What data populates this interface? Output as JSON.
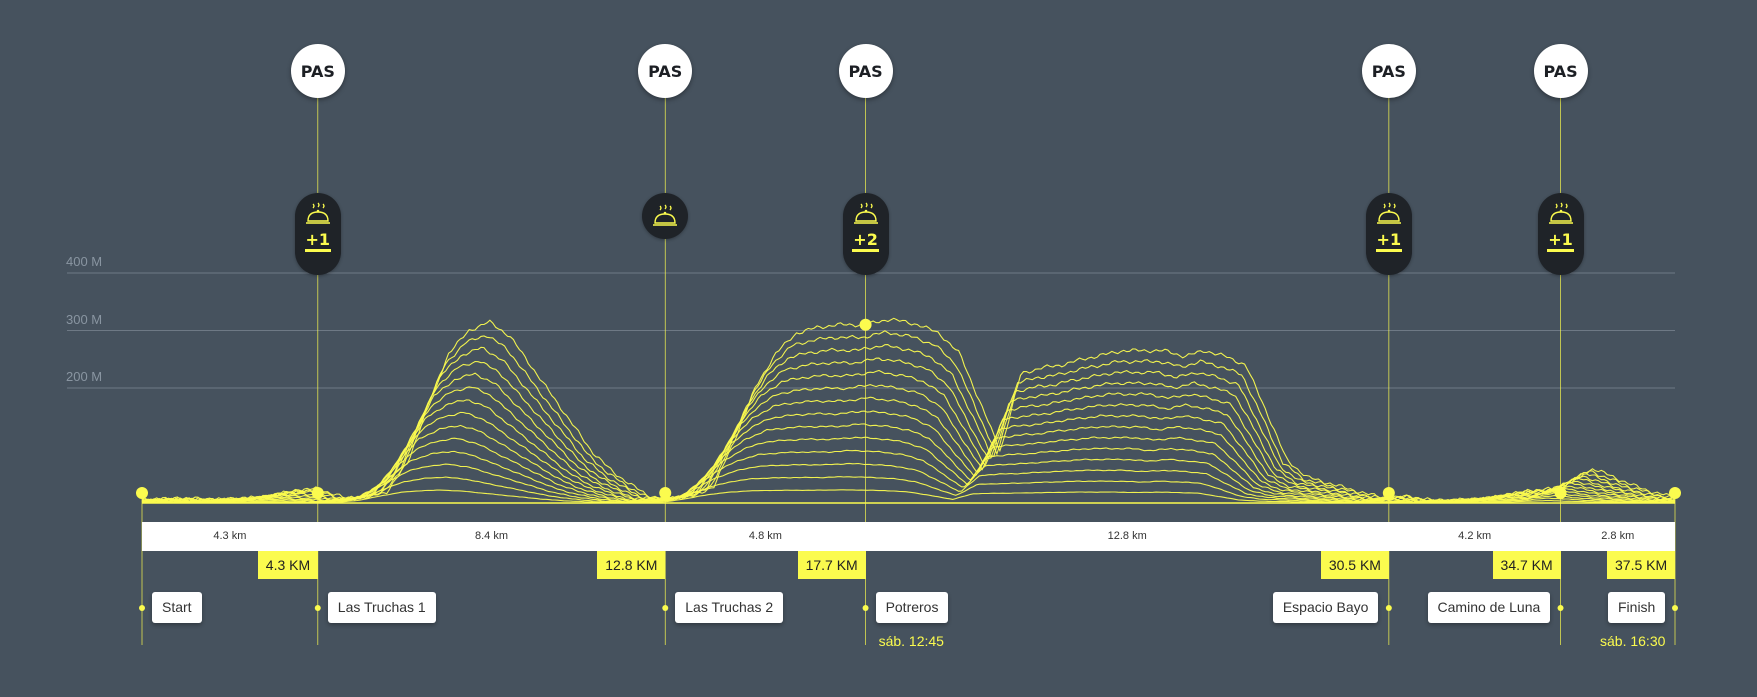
{
  "chart_data": {
    "type": "area",
    "title": "",
    "xlabel": "",
    "ylabel": "",
    "x_unit": "km",
    "xlim": [
      0,
      37.5
    ],
    "ylim": [
      0,
      420
    ],
    "y_ticks": [
      {
        "value": 200,
        "label": "200 M"
      },
      {
        "value": 300,
        "label": "300 M"
      },
      {
        "value": 400,
        "label": "400 M"
      }
    ],
    "grid": true,
    "legend": "none",
    "elevation_profile": {
      "x": [
        0,
        1,
        2,
        3,
        3.8,
        4.3,
        5,
        5.5,
        6,
        6.5,
        7,
        7.5,
        8,
        8.5,
        9,
        9.5,
        10,
        10.5,
        11,
        11.5,
        12,
        12.4,
        12.8,
        13.2,
        13.6,
        14,
        14.5,
        15,
        15.5,
        16,
        16.5,
        17,
        17.7,
        18.3,
        19,
        19.5,
        20,
        20.5,
        21,
        21.5,
        22,
        22.5,
        23,
        24,
        25,
        25.5,
        26,
        26.5,
        27,
        27.5,
        28,
        28.5,
        29,
        29.5,
        30,
        30.5,
        31,
        31.5,
        32,
        33,
        33.5,
        34,
        34.7,
        35,
        35.5,
        36,
        36.5,
        37,
        37.5
      ],
      "y": [
        5,
        8,
        6,
        10,
        22,
        25,
        8,
        10,
        20,
        70,
        170,
        260,
        300,
        315,
        290,
        240,
        190,
        140,
        90,
        55,
        30,
        12,
        8,
        10,
        15,
        30,
        110,
        200,
        260,
        295,
        305,
        310,
        310,
        320,
        310,
        295,
        260,
        175,
        90,
        225,
        235,
        240,
        250,
        265,
        265,
        255,
        265,
        255,
        240,
        160,
        75,
        45,
        35,
        25,
        15,
        8,
        12,
        5,
        4,
        8,
        15,
        22,
        25,
        40,
        60,
        45,
        30,
        18,
        10
      ]
    },
    "layer_count": 14,
    "aid_stations": [
      {
        "km": 4.3,
        "badge": "PAS",
        "food": "+1"
      },
      {
        "km": 12.8,
        "badge": "PAS",
        "food": ""
      },
      {
        "km": 17.7,
        "badge": "PAS",
        "food": "+2"
      },
      {
        "km": 30.5,
        "badge": "PAS",
        "food": "+1"
      },
      {
        "km": 34.7,
        "badge": "PAS",
        "food": "+1"
      }
    ],
    "segments": [
      {
        "from_km": 0,
        "to_km": 4.3,
        "label": "4.3 km"
      },
      {
        "from_km": 4.3,
        "to_km": 12.8,
        "label": "8.4 km"
      },
      {
        "from_km": 12.8,
        "to_km": 17.7,
        "label": "4.8 km"
      },
      {
        "from_km": 17.7,
        "to_km": 30.5,
        "label": "12.8 km"
      },
      {
        "from_km": 30.5,
        "to_km": 34.7,
        "label": "4.2 km"
      },
      {
        "from_km": 34.7,
        "to_km": 37.5,
        "label": "2.8 km"
      }
    ],
    "checkpoints": [
      {
        "km": 0,
        "name": "Start",
        "km_label": "",
        "time": ""
      },
      {
        "km": 4.3,
        "name": "Las Truchas 1",
        "km_label": "4.3 KM",
        "time": ""
      },
      {
        "km": 12.8,
        "name": "Las Truchas 2",
        "km_label": "12.8 KM",
        "time": ""
      },
      {
        "km": 17.7,
        "name": "Potreros",
        "km_label": "17.7 KM",
        "time": "sáb. 12:45"
      },
      {
        "km": 30.5,
        "name": "Espacio Bayo",
        "km_label": "30.5 KM",
        "time": ""
      },
      {
        "km": 34.7,
        "name": "Camino de Luna",
        "km_label": "34.7 KM",
        "time": ""
      },
      {
        "km": 37.5,
        "name": "Finish",
        "km_label": "37.5 KM",
        "time": "sáb. 16:30"
      }
    ],
    "highlight_km": 17.7
  },
  "colors": {
    "background": "#46525e",
    "accent": "#fbfb4e",
    "grid": "#7c8793",
    "badge_bg": "#ffffff",
    "food_pill_bg": "#1f2328"
  },
  "icons": {
    "food": "cloche-icon"
  }
}
